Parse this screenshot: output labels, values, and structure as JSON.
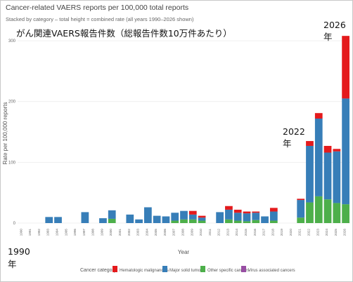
{
  "chart_data": {
    "type": "bar",
    "stacked": true,
    "title": "Cancer-related VAERS reports per 100,000 total reports",
    "subtitle": "Stacked by category – total height = combined rate (all years 1990–2026 shown)",
    "overlay_title": "がん関連VAERS報告件数（総報告件数10万件あたり）",
    "xlabel": "Year",
    "ylabel": "Rate per 100,000 reports",
    "ylim": [
      0,
      310
    ],
    "yticks": [
      0,
      100,
      200,
      300
    ],
    "grid": true,
    "legend_position": "bottom",
    "legend_title": "Cancer category",
    "categories": [
      "1990",
      "1991",
      "1992",
      "1993",
      "1994",
      "1995",
      "1996",
      "1997",
      "1998",
      "1999",
      "2000",
      "2001",
      "2002",
      "2003",
      "2004",
      "2005",
      "2006",
      "2007",
      "2008",
      "2009",
      "2010",
      "2011",
      "2012",
      "2013",
      "2014",
      "2015",
      "2016",
      "2017",
      "2018",
      "2019",
      "2020",
      "2021",
      "2022",
      "2023",
      "2024",
      "2025",
      "2026"
    ],
    "series": [
      {
        "name": "Hematologic malignancies",
        "color": "#e41a1c",
        "values": [
          0,
          0,
          0,
          0,
          0,
          0,
          0,
          0,
          0,
          0,
          0,
          0,
          0,
          0,
          0,
          0,
          0,
          0,
          0,
          6,
          3,
          0,
          0,
          6,
          5,
          3,
          2,
          0,
          6,
          0,
          0,
          2,
          8,
          9,
          11,
          4,
          103
        ]
      },
      {
        "name": "Major solid tumors",
        "color": "#377eb8",
        "values": [
          0,
          0,
          0,
          10,
          10,
          0,
          0,
          18,
          0,
          8,
          14,
          0,
          14,
          6,
          26,
          12,
          11,
          13,
          14,
          8,
          5,
          0,
          18,
          16,
          13,
          13,
          12,
          11,
          15,
          0,
          0,
          29,
          93,
          128,
          77,
          85,
          174
        ]
      },
      {
        "name": "Other specific cancers",
        "color": "#4daf4a",
        "values": [
          0,
          0,
          0,
          0,
          0,
          0,
          0,
          0,
          0,
          0,
          7,
          0,
          0,
          0,
          0,
          0,
          0,
          4,
          6,
          6,
          4,
          0,
          0,
          6,
          4,
          3,
          5,
          0,
          4,
          0,
          0,
          9,
          34,
          44,
          39,
          33,
          31
        ]
      },
      {
        "name": "Virus associated cancers",
        "color": "#984ea3",
        "values": [
          0,
          0,
          0,
          0,
          0,
          0,
          0,
          0,
          0,
          0,
          0,
          0,
          0,
          0,
          0,
          0,
          0,
          0,
          0,
          0,
          0,
          0,
          0,
          0,
          0,
          0,
          0,
          0,
          0,
          0,
          0,
          0,
          0,
          0,
          0,
          0,
          0
        ]
      }
    ]
  },
  "annotations": {
    "y2026_line1": "2026",
    "y2026_line2": "年",
    "y2022_line1": "2022",
    "y2022_line2": "年",
    "y1990_line1": "1990",
    "y1990_line2": "年"
  }
}
